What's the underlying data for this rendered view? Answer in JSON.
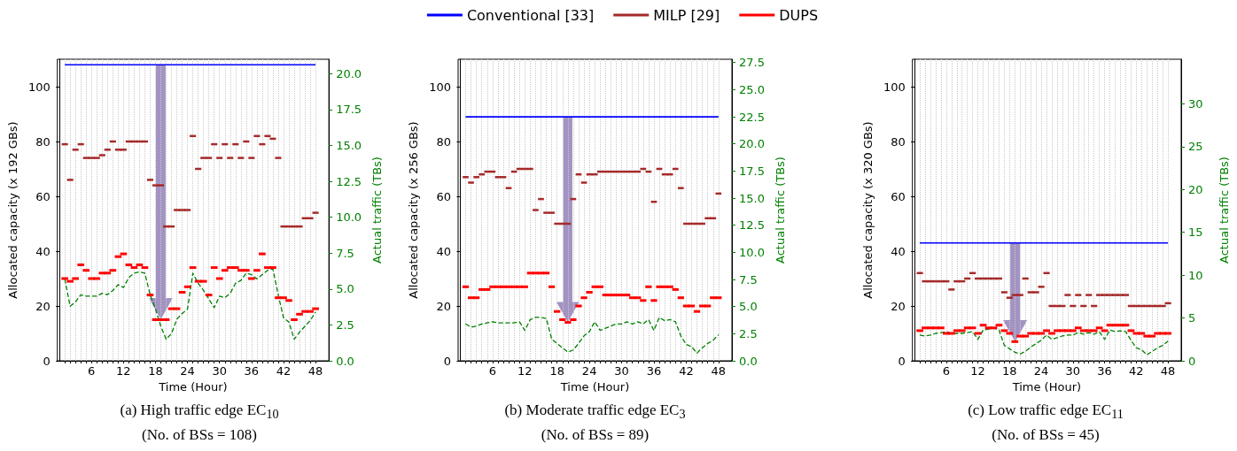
{
  "chart_data": [
    {
      "type": "scatter",
      "title": "(a) High traffic edge EC$_{10}$",
      "subtitle": "(No. of BSs = 108)",
      "xlabel": "Time (Hour)",
      "ylabel": "Allocated capacity (x 192 GBs)",
      "y2label": "Actual traffic (TBs)",
      "x": [
        1,
        2,
        3,
        4,
        5,
        6,
        7,
        8,
        9,
        10,
        11,
        12,
        13,
        14,
        15,
        16,
        17,
        18,
        19,
        20,
        21,
        22,
        23,
        24,
        25,
        26,
        27,
        28,
        29,
        30,
        31,
        32,
        33,
        34,
        35,
        36,
        37,
        38,
        39,
        40,
        41,
        42,
        43,
        44,
        45,
        46,
        47,
        48
      ],
      "xlim": [
        -0.4,
        50.5
      ],
      "xticks": [
        {
          "value": 1,
          "label": null
        },
        {
          "value": 2,
          "label": null
        },
        {
          "value": 3,
          "label": null
        },
        {
          "value": 4,
          "label": null
        },
        {
          "value": 5,
          "label": null
        },
        6,
        {
          "value": 7,
          "label": null
        },
        {
          "value": 8,
          "label": null
        },
        {
          "value": 9,
          "label": null
        },
        {
          "value": 10,
          "label": null
        },
        {
          "value": 11,
          "label": null
        },
        12,
        {
          "value": 13,
          "label": null
        },
        {
          "value": 14,
          "label": null
        },
        {
          "value": 15,
          "label": null
        },
        {
          "value": 16,
          "label": null
        },
        {
          "value": 17,
          "label": null
        },
        18,
        {
          "value": 19,
          "label": null
        },
        {
          "value": 20,
          "label": null
        },
        {
          "value": 21,
          "label": null
        },
        {
          "value": 22,
          "label": null
        },
        {
          "value": 23,
          "label": null
        },
        24,
        {
          "value": 25,
          "label": null
        },
        {
          "value": 26,
          "label": null
        },
        {
          "value": 27,
          "label": null
        },
        {
          "value": 28,
          "label": null
        },
        {
          "value": 29,
          "label": null
        },
        30,
        {
          "value": 31,
          "label": null
        },
        {
          "value": 32,
          "label": null
        },
        {
          "value": 33,
          "label": null
        },
        {
          "value": 34,
          "label": null
        },
        {
          "value": 35,
          "label": null
        },
        36,
        {
          "value": 37,
          "label": null
        },
        {
          "value": 38,
          "label": null
        },
        {
          "value": 39,
          "label": null
        },
        {
          "value": 40,
          "label": null
        },
        {
          "value": 41,
          "label": null
        },
        42,
        {
          "value": 43,
          "label": null
        },
        {
          "value": 44,
          "label": null
        },
        {
          "value": 45,
          "label": null
        },
        {
          "value": 46,
          "label": null
        },
        {
          "value": 47,
          "label": null
        },
        48
      ],
      "ylim": [
        0,
        110
      ],
      "yticks": [
        0,
        20,
        40,
        60,
        80,
        100
      ],
      "y2lim": [
        0,
        21
      ],
      "y2ticks": [
        {
          "value": 0,
          "label": "0.0"
        },
        {
          "value": 2.5,
          "label": "2.5"
        },
        {
          "value": 5,
          "label": "5.0"
        },
        {
          "value": 7.5,
          "label": "7.5"
        },
        {
          "value": 10,
          "label": "10.0"
        },
        {
          "value": 12.5,
          "label": "12.5"
        },
        {
          "value": 15,
          "label": "15.0"
        },
        {
          "value": 17.5,
          "label": "17.5"
        },
        {
          "value": 20,
          "label": "20.0"
        }
      ],
      "grid": "x",
      "legend": false,
      "series": [
        {
          "type": "line",
          "color": "#0000ff",
          "values": [
            108,
            108,
            108,
            108,
            108,
            108,
            108,
            108,
            108,
            108,
            108,
            108,
            108,
            108,
            108,
            108,
            108,
            108,
            108,
            108,
            108,
            108,
            108,
            108,
            108,
            108,
            108,
            108,
            108,
            108,
            108,
            108,
            108,
            108,
            108,
            108,
            108,
            108,
            108,
            108,
            108,
            108,
            108,
            108,
            108,
            108,
            108,
            108
          ]
        },
        {
          "color": "#a52a2a",
          "values": [
            79,
            66,
            77,
            79,
            74,
            74,
            74,
            75,
            77,
            80,
            77,
            77,
            80,
            80,
            80,
            80,
            66,
            64,
            64,
            49,
            49,
            55,
            55,
            55,
            82,
            70,
            74,
            74,
            79,
            74,
            79,
            74,
            79,
            74,
            80,
            74,
            82,
            79,
            82,
            81,
            74,
            49,
            49,
            49,
            49,
            52,
            52,
            54
          ]
        },
        {
          "color": "#ff0000",
          "values": [
            30,
            29,
            30,
            35,
            33,
            30,
            30,
            32,
            32,
            33,
            38,
            39,
            35,
            34,
            35,
            34,
            24,
            15,
            15,
            15,
            19,
            19,
            25,
            27,
            34,
            29,
            29,
            24,
            34,
            30,
            33,
            34,
            34,
            33,
            33,
            30,
            33,
            39,
            34,
            34,
            23,
            23,
            22,
            15,
            17,
            18,
            18,
            19
          ]
        },
        {
          "type": "line",
          "axis": "y2",
          "line_style": "dashed",
          "color": "#008000",
          "values": [
            5.7,
            3.8,
            4.1,
            4.6,
            4.5,
            4.5,
            4.5,
            4.7,
            4.6,
            4.9,
            5.3,
            5.1,
            5.8,
            6.1,
            6.2,
            6.1,
            4.6,
            3.6,
            2.4,
            1.5,
            1.9,
            2.9,
            3.3,
            3.6,
            6.1,
            5.4,
            4.9,
            4.3,
            3.7,
            4.5,
            4.4,
            4.7,
            5.4,
            5.6,
            6.1,
            6.0,
            5.7,
            6.0,
            6.3,
            6.4,
            4.6,
            3.0,
            2.7,
            1.5,
            2.0,
            2.4,
            2.8,
            3.4
          ]
        }
      ]
    },
    {
      "type": "scatter",
      "title": "(b) Moderate traffic edge EC$_{3}$",
      "subtitle": "(No. of BSs = 89)",
      "xlabel": "Time (Hour)",
      "ylabel": "Allocated capacity (x 256 GBs)",
      "y2label": "Actual traffic (TBs)",
      "x": [
        1,
        2,
        3,
        4,
        5,
        6,
        7,
        8,
        9,
        10,
        11,
        12,
        13,
        14,
        15,
        16,
        17,
        18,
        19,
        20,
        21,
        22,
        23,
        24,
        25,
        26,
        27,
        28,
        29,
        30,
        31,
        32,
        33,
        34,
        35,
        36,
        37,
        38,
        39,
        40,
        41,
        42,
        43,
        44,
        45,
        46,
        47,
        48
      ],
      "xlim": [
        -0.4,
        50.5
      ],
      "xticks": [
        {
          "value": 1,
          "label": null
        },
        {
          "value": 2,
          "label": null
        },
        {
          "value": 3,
          "label": null
        },
        {
          "value": 4,
          "label": null
        },
        {
          "value": 5,
          "label": null
        },
        6,
        {
          "value": 7,
          "label": null
        },
        {
          "value": 8,
          "label": null
        },
        {
          "value": 9,
          "label": null
        },
        {
          "value": 10,
          "label": null
        },
        {
          "value": 11,
          "label": null
        },
        12,
        {
          "value": 13,
          "label": null
        },
        {
          "value": 14,
          "label": null
        },
        {
          "value": 15,
          "label": null
        },
        {
          "value": 16,
          "label": null
        },
        {
          "value": 17,
          "label": null
        },
        18,
        {
          "value": 19,
          "label": null
        },
        {
          "value": 20,
          "label": null
        },
        {
          "value": 21,
          "label": null
        },
        {
          "value": 22,
          "label": null
        },
        {
          "value": 23,
          "label": null
        },
        24,
        {
          "value": 25,
          "label": null
        },
        {
          "value": 26,
          "label": null
        },
        {
          "value": 27,
          "label": null
        },
        {
          "value": 28,
          "label": null
        },
        {
          "value": 29,
          "label": null
        },
        30,
        {
          "value": 31,
          "label": null
        },
        {
          "value": 32,
          "label": null
        },
        {
          "value": 33,
          "label": null
        },
        {
          "value": 34,
          "label": null
        },
        {
          "value": 35,
          "label": null
        },
        36,
        {
          "value": 37,
          "label": null
        },
        {
          "value": 38,
          "label": null
        },
        {
          "value": 39,
          "label": null
        },
        {
          "value": 40,
          "label": null
        },
        {
          "value": 41,
          "label": null
        },
        42,
        {
          "value": 43,
          "label": null
        },
        {
          "value": 44,
          "label": null
        },
        {
          "value": 45,
          "label": null
        },
        {
          "value": 46,
          "label": null
        },
        {
          "value": 47,
          "label": null
        },
        48
      ],
      "ylim": [
        0,
        110
      ],
      "yticks": [
        0,
        20,
        40,
        60,
        80,
        100
      ],
      "y2lim": [
        0,
        27.8
      ],
      "y2ticks": [
        {
          "value": 0,
          "label": "0.0"
        },
        {
          "value": 2.5,
          "label": "2.5"
        },
        {
          "value": 5,
          "label": "5.0"
        },
        {
          "value": 7.5,
          "label": "7.5"
        },
        {
          "value": 10,
          "label": "10.0"
        },
        {
          "value": 12.5,
          "label": "12.5"
        },
        {
          "value": 15,
          "label": "15.0"
        },
        {
          "value": 17.5,
          "label": "17.5"
        },
        {
          "value": 20,
          "label": "20.0"
        },
        {
          "value": 22.5,
          "label": "22.5"
        },
        {
          "value": 25,
          "label": "25.0"
        },
        {
          "value": 27.5,
          "label": "27.5"
        }
      ],
      "grid": "x",
      "legend": "top",
      "series": [
        {
          "type": "line",
          "name": "Conventional [33]",
          "color": "#0000ff",
          "values": [
            89,
            89,
            89,
            89,
            89,
            89,
            89,
            89,
            89,
            89,
            89,
            89,
            89,
            89,
            89,
            89,
            89,
            89,
            89,
            89,
            89,
            89,
            89,
            89,
            89,
            89,
            89,
            89,
            89,
            89,
            89,
            89,
            89,
            89,
            89,
            89,
            89,
            89,
            89,
            89,
            89,
            89,
            89,
            89,
            89,
            89,
            89,
            89
          ]
        },
        {
          "name": "MILP [29]",
          "color": "#a52a2a",
          "values": [
            67,
            65,
            67,
            68,
            69,
            69,
            67,
            67,
            63,
            69,
            70,
            70,
            70,
            55,
            59,
            54,
            54,
            50,
            50,
            50,
            59,
            68,
            65,
            68,
            68,
            69,
            69,
            69,
            69,
            69,
            69,
            69,
            69,
            70,
            69,
            58,
            70,
            68,
            68,
            70,
            63,
            50,
            50,
            50,
            50,
            52,
            52,
            61
          ]
        },
        {
          "name": "DUPS",
          "color": "#ff0000",
          "values": [
            27,
            23,
            23,
            26,
            26,
            27,
            27,
            27,
            27,
            27,
            27,
            27,
            32,
            32,
            32,
            32,
            27,
            18,
            15,
            14,
            15,
            20,
            23,
            25,
            27,
            27,
            24,
            24,
            24,
            24,
            24,
            23,
            23,
            22,
            27,
            22,
            27,
            27,
            27,
            26,
            23,
            20,
            20,
            18,
            20,
            20,
            23,
            23
          ]
        },
        {
          "type": "line",
          "axis": "y2",
          "line_style": "dashed",
          "color": "#008000",
          "values": [
            3.4,
            3.1,
            3.2,
            3.4,
            3.5,
            3.6,
            3.5,
            3.5,
            3.5,
            3.5,
            3.6,
            2.8,
            3.8,
            4.0,
            4.0,
            3.9,
            2.0,
            1.6,
            1.2,
            0.8,
            1.0,
            1.6,
            2.3,
            2.7,
            3.6,
            2.8,
            3.0,
            3.2,
            3.4,
            3.4,
            3.6,
            3.4,
            3.6,
            3.4,
            3.8,
            2.8,
            4.0,
            3.7,
            3.8,
            3.6,
            2.3,
            1.5,
            1.3,
            0.7,
            1.2,
            1.6,
            1.9,
            2.4
          ]
        }
      ]
    },
    {
      "type": "scatter",
      "title": "(c) Low traffic edge EC$_{11}$",
      "subtitle": "(No. of BSs = 45)",
      "xlabel": "Time (Hour)",
      "ylabel": "Allocated capacity (x 320 GBs)",
      "y2label": "Actual traffic (TBs)",
      "x": [
        1,
        2,
        3,
        4,
        5,
        6,
        7,
        8,
        9,
        10,
        11,
        12,
        13,
        14,
        15,
        16,
        17,
        18,
        19,
        20,
        21,
        22,
        23,
        24,
        25,
        26,
        27,
        28,
        29,
        30,
        31,
        32,
        33,
        34,
        35,
        36,
        37,
        38,
        39,
        40,
        41,
        42,
        43,
        44,
        45,
        46,
        47,
        48
      ],
      "xlim": [
        -0.4,
        50.5
      ],
      "xticks": [
        {
          "value": 1,
          "label": null
        },
        {
          "value": 2,
          "label": null
        },
        {
          "value": 3,
          "label": null
        },
        {
          "value": 4,
          "label": null
        },
        {
          "value": 5,
          "label": null
        },
        6,
        {
          "value": 7,
          "label": null
        },
        {
          "value": 8,
          "label": null
        },
        {
          "value": 9,
          "label": null
        },
        {
          "value": 10,
          "label": null
        },
        {
          "value": 11,
          "label": null
        },
        12,
        {
          "value": 13,
          "label": null
        },
        {
          "value": 14,
          "label": null
        },
        {
          "value": 15,
          "label": null
        },
        {
          "value": 16,
          "label": null
        },
        {
          "value": 17,
          "label": null
        },
        18,
        {
          "value": 19,
          "label": null
        },
        {
          "value": 20,
          "label": null
        },
        {
          "value": 21,
          "label": null
        },
        {
          "value": 22,
          "label": null
        },
        {
          "value": 23,
          "label": null
        },
        24,
        {
          "value": 25,
          "label": null
        },
        {
          "value": 26,
          "label": null
        },
        {
          "value": 27,
          "label": null
        },
        {
          "value": 28,
          "label": null
        },
        {
          "value": 29,
          "label": null
        },
        30,
        {
          "value": 31,
          "label": null
        },
        {
          "value": 32,
          "label": null
        },
        {
          "value": 33,
          "label": null
        },
        {
          "value": 34,
          "label": null
        },
        {
          "value": 35,
          "label": null
        },
        36,
        {
          "value": 37,
          "label": null
        },
        {
          "value": 38,
          "label": null
        },
        {
          "value": 39,
          "label": null
        },
        {
          "value": 40,
          "label": null
        },
        {
          "value": 41,
          "label": null
        },
        42,
        {
          "value": 43,
          "label": null
        },
        {
          "value": 44,
          "label": null
        },
        {
          "value": 45,
          "label": null
        },
        {
          "value": 46,
          "label": null
        },
        {
          "value": 47,
          "label": null
        },
        48
      ],
      "ylim": [
        0,
        110
      ],
      "yticks": [
        0,
        20,
        40,
        60,
        80,
        100
      ],
      "y2lim": [
        0,
        35.2
      ],
      "y2ticks": [
        0,
        5,
        10,
        15,
        20,
        25,
        30
      ],
      "grid": "x",
      "legend": false,
      "series": [
        {
          "type": "line",
          "color": "#0000ff",
          "values": [
            43,
            43,
            43,
            43,
            43,
            43,
            43,
            43,
            43,
            43,
            43,
            43,
            43,
            43,
            43,
            43,
            43,
            43,
            43,
            43,
            43,
            43,
            43,
            43,
            43,
            43,
            43,
            43,
            43,
            43,
            43,
            43,
            43,
            43,
            43,
            43,
            43,
            43,
            43,
            43,
            43,
            43,
            43,
            43,
            43,
            43,
            43,
            43
          ]
        },
        {
          "color": "#a52a2a",
          "values": [
            32,
            29,
            29,
            29,
            29,
            29,
            26,
            29,
            29,
            30,
            32,
            30,
            30,
            30,
            30,
            30,
            25,
            23,
            24,
            24,
            30,
            25,
            25,
            27,
            32,
            20,
            20,
            20,
            24,
            20,
            24,
            20,
            24,
            20,
            24,
            24,
            24,
            24,
            24,
            24,
            20,
            20,
            20,
            20,
            20,
            20,
            20,
            21
          ]
        },
        {
          "color": "#ff0000",
          "values": [
            11,
            12,
            12,
            12,
            12,
            10,
            10,
            11,
            11,
            12,
            12,
            10,
            13,
            12,
            12,
            13,
            11,
            10,
            7,
            9,
            9,
            10,
            10,
            10,
            11,
            10,
            11,
            11,
            11,
            11,
            12,
            11,
            11,
            11,
            12,
            11,
            13,
            13,
            13,
            13,
            11,
            10,
            10,
            9,
            9,
            10,
            10,
            10
          ]
        },
        {
          "type": "line",
          "axis": "y2",
          "line_style": "dashed",
          "color": "#008000",
          "values": [
            3.0,
            2.9,
            3.0,
            3.2,
            3.3,
            3.4,
            3.2,
            3.2,
            3.2,
            3.3,
            3.4,
            2.5,
            3.6,
            3.7,
            3.8,
            3.6,
            1.8,
            1.4,
            1.0,
            0.8,
            1.1,
            1.6,
            2.0,
            2.4,
            3.0,
            2.5,
            2.7,
            2.9,
            3.0,
            3.0,
            3.3,
            3.1,
            3.3,
            3.1,
            3.4,
            2.5,
            3.6,
            3.4,
            3.5,
            3.4,
            2.4,
            1.5,
            1.3,
            0.7,
            1.1,
            1.5,
            1.8,
            2.3
          ]
        }
      ]
    }
  ]
}
